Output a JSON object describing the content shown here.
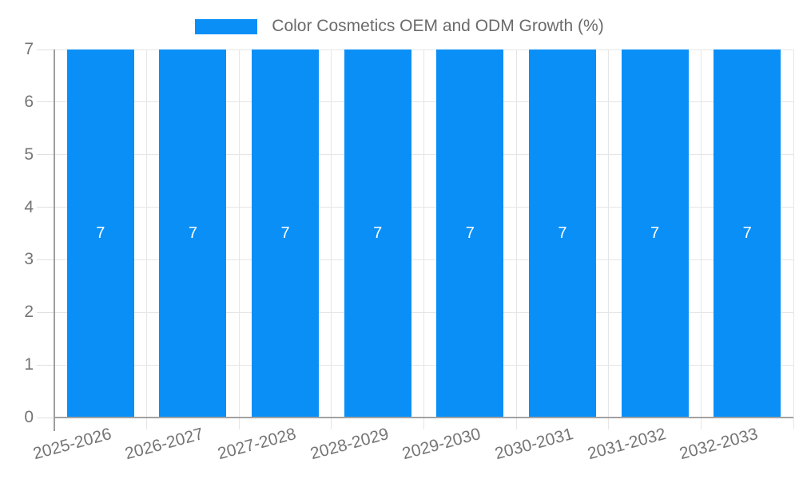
{
  "legend": {
    "label": "Color Cosmetics OEM and ODM Growth (%)"
  },
  "chart_data": {
    "type": "bar",
    "title": "Color Cosmetics OEM and ODM Growth (%)",
    "categories": [
      "2025-2026",
      "2026-2027",
      "2027-2028",
      "2028-2029",
      "2029-2030",
      "2030-2031",
      "2031-2032",
      "2032-2033"
    ],
    "series": [
      {
        "name": "Color Cosmetics OEM and ODM Growth (%)",
        "values": [
          7,
          7,
          7,
          7,
          7,
          7,
          7,
          7
        ]
      }
    ],
    "bar_data_labels": [
      "7",
      "7",
      "7",
      "7",
      "7",
      "7",
      "7",
      "7"
    ],
    "xlabel": "",
    "ylabel": "",
    "ylim": [
      0,
      7
    ],
    "yticks": [
      0,
      1,
      2,
      3,
      4,
      5,
      6,
      7
    ],
    "grid": "horizontal and vertical gridlines on",
    "legend_position": "top-center",
    "x_label_rotation_deg": -15,
    "colors": {
      "bar": "#0a8ff7",
      "bar_label_text": "#ffffff",
      "axis_text": "#757575",
      "legend_text": "#6b6b6b",
      "gridline": "#e6e6e6",
      "axis_line": "#9e9e9e",
      "background": "#ffffff"
    }
  }
}
